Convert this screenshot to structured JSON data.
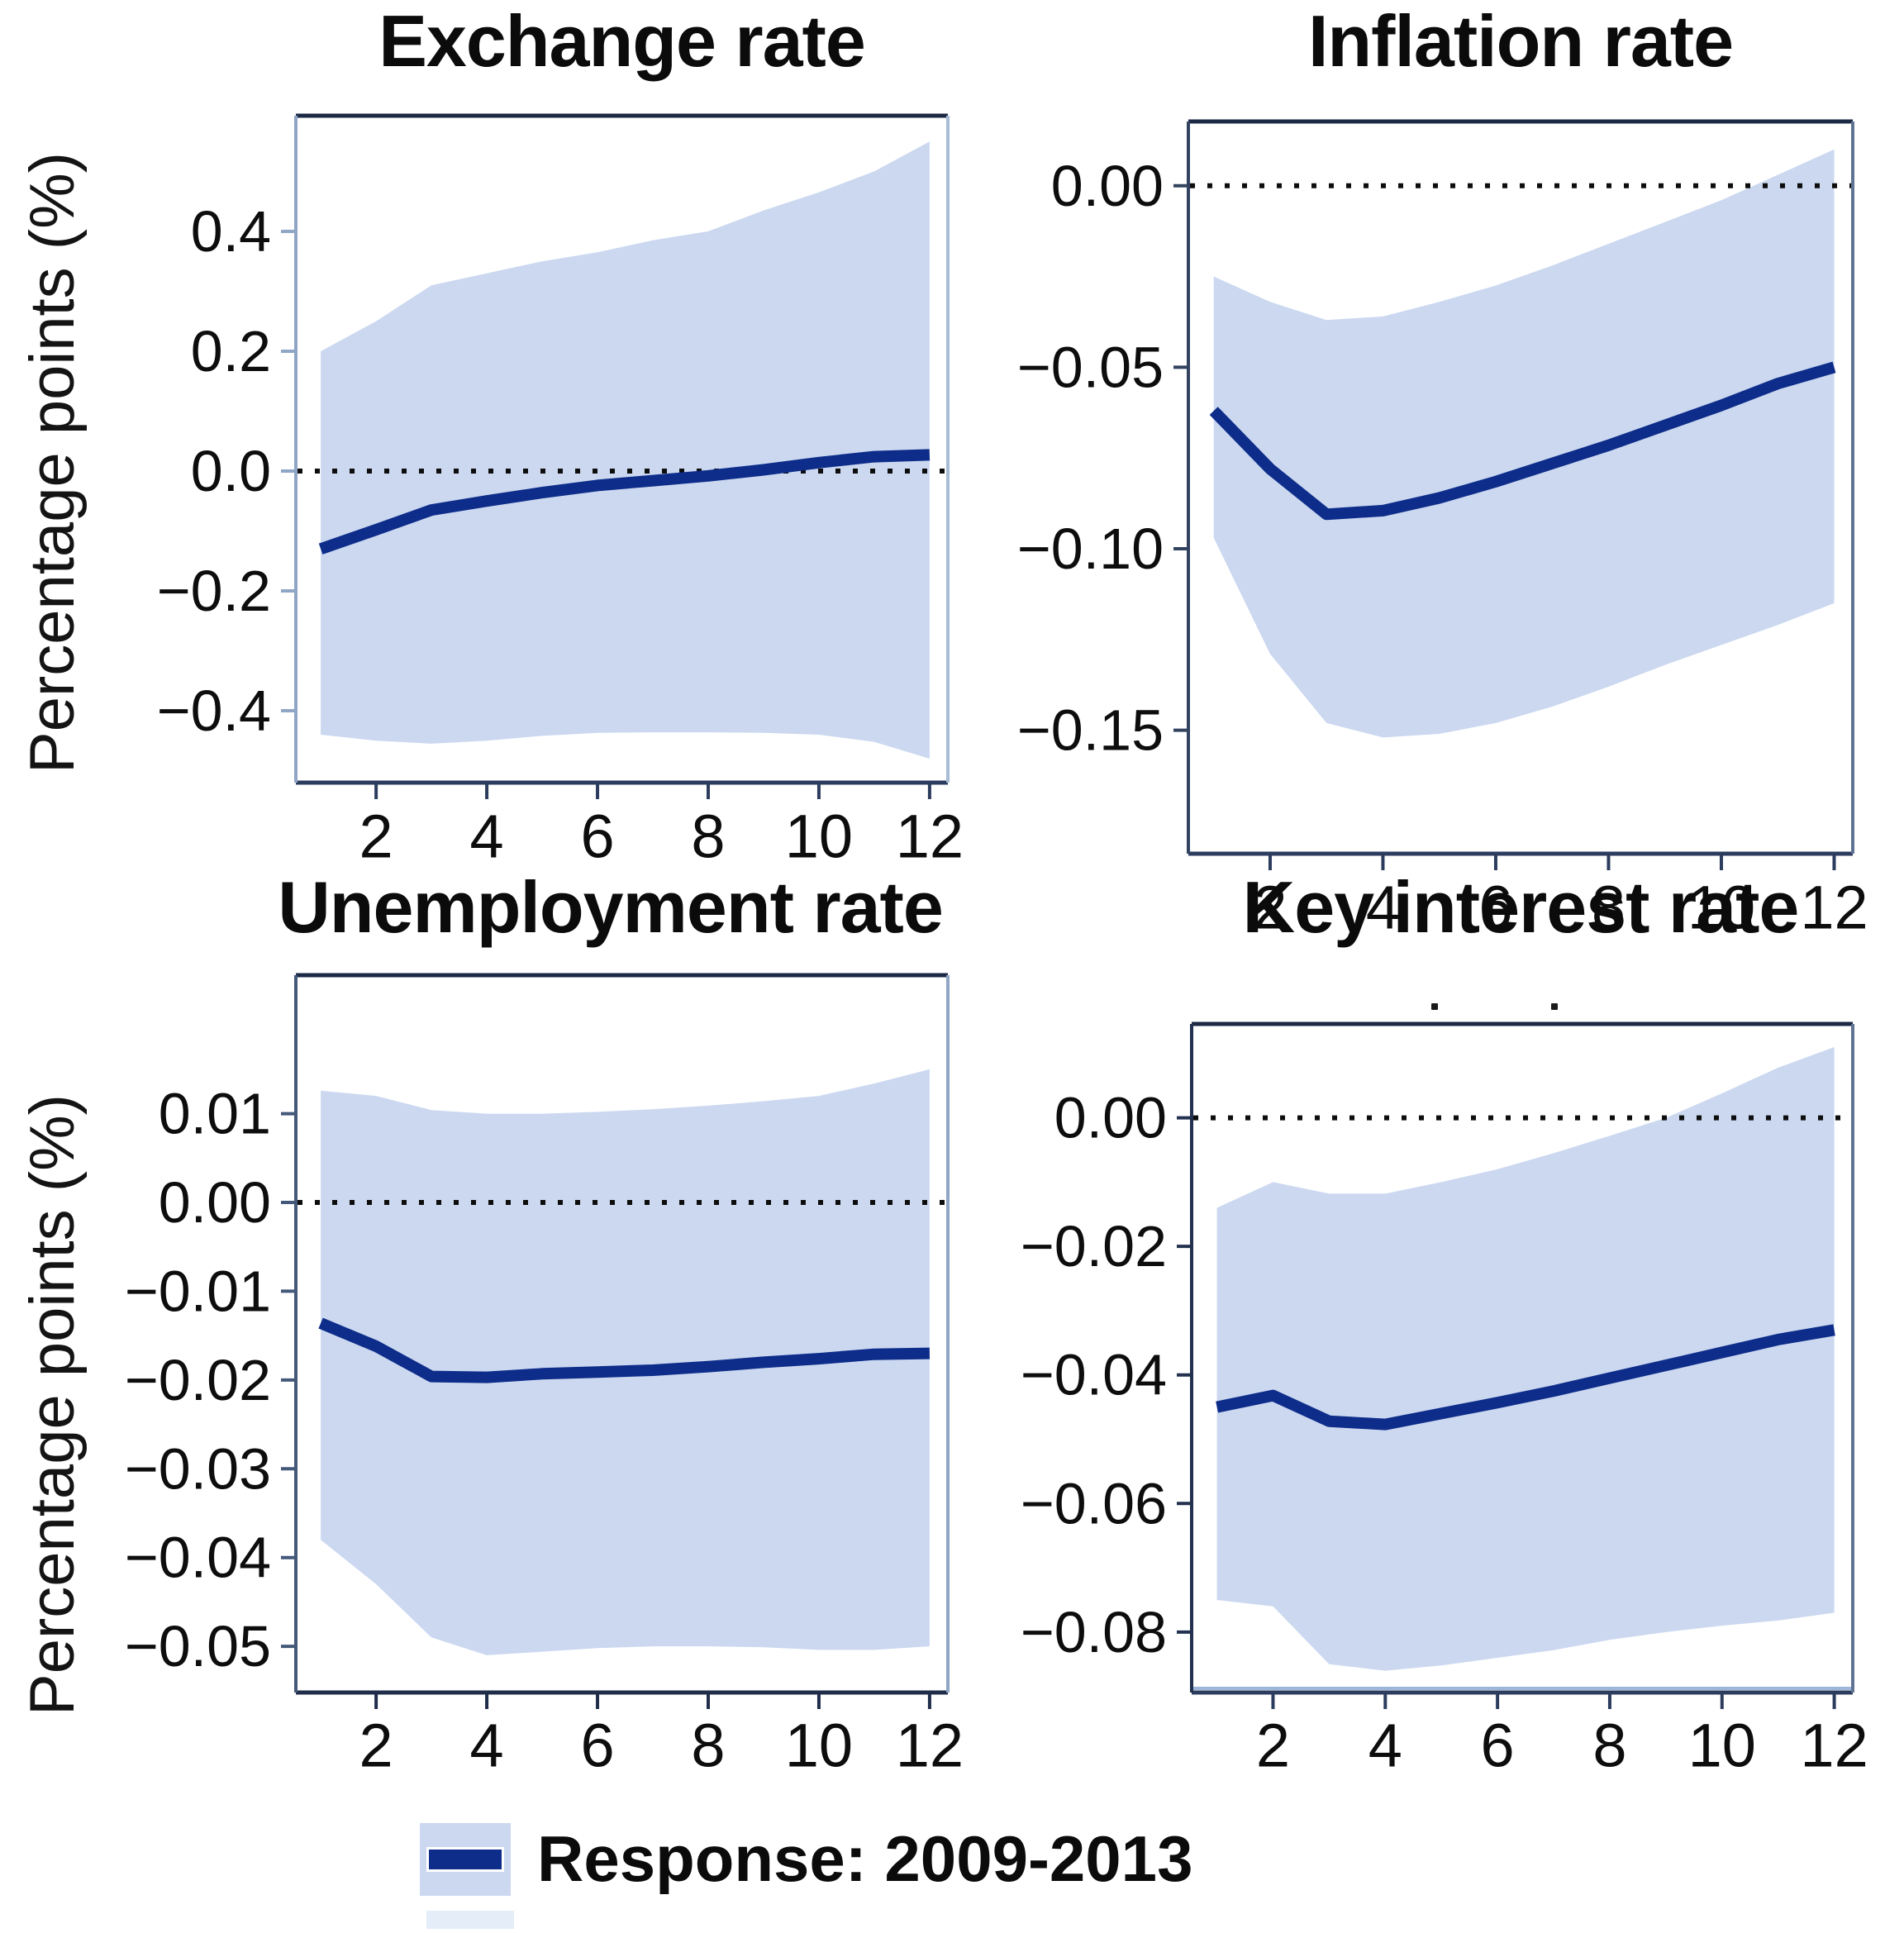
{
  "figure": {
    "ylabel": "Percentage points (%)",
    "legend": {
      "label": "Response: 2009-2013"
    },
    "colors": {
      "band": "#cbd8f0",
      "line": "#0e2d8a",
      "zero_line": "#0d0d0d",
      "title_text": "#0b0b0b",
      "tick_text": "#0d0d0d"
    }
  },
  "chart_data": [
    {
      "type": "line",
      "title": "Exchange rate",
      "x": [
        1,
        2,
        3,
        4,
        5,
        6,
        7,
        8,
        9,
        10,
        11,
        12
      ],
      "x_ticks": [
        2,
        4,
        6,
        8,
        10,
        12
      ],
      "xlim": [
        0.55,
        12.33
      ],
      "ylim": [
        -0.52,
        0.593
      ],
      "y_ticks": [
        {
          "v": 0.4,
          "label": "0.4"
        },
        {
          "v": 0.2,
          "label": "0.2"
        },
        {
          "v": 0.0,
          "label": "0.0"
        },
        {
          "v": -0.2,
          "label": "−0.2"
        },
        {
          "v": -0.4,
          "label": "−0.4"
        }
      ],
      "zero_line": true,
      "series": [
        {
          "name": "Response: 2009-2013",
          "values": [
            -0.13,
            -0.098,
            -0.065,
            -0.05,
            -0.036,
            -0.024,
            -0.016,
            -0.008,
            0.002,
            0.014,
            0.024,
            0.027
          ]
        }
      ],
      "band": {
        "upper": [
          0.2,
          0.25,
          0.31,
          0.33,
          0.35,
          0.365,
          0.385,
          0.4,
          0.435,
          0.465,
          0.5,
          0.55
        ],
        "lower": [
          -0.44,
          -0.45,
          -0.455,
          -0.45,
          -0.442,
          -0.437,
          -0.436,
          -0.436,
          -0.437,
          -0.44,
          -0.452,
          -0.48
        ]
      }
    },
    {
      "type": "line",
      "title": "Inflation rate",
      "x": [
        1,
        2,
        3,
        4,
        5,
        6,
        7,
        8,
        9,
        10,
        11,
        12
      ],
      "x_ticks": [
        2,
        4,
        6,
        8,
        10,
        12
      ],
      "xlim": [
        0.55,
        12.33
      ],
      "ylim": [
        -0.184,
        0.0177
      ],
      "y_ticks": [
        {
          "v": 0.0,
          "label": "0.00"
        },
        {
          "v": -0.05,
          "label": "−0.05"
        },
        {
          "v": -0.1,
          "label": "−0.10"
        },
        {
          "v": -0.15,
          "label": "−0.15"
        }
      ],
      "zero_line": true,
      "series": [
        {
          "name": "Response: 2009-2013",
          "values": [
            -0.062,
            -0.078,
            -0.0905,
            -0.0895,
            -0.086,
            -0.0815,
            -0.0765,
            -0.0715,
            -0.066,
            -0.0605,
            -0.0545,
            -0.05
          ]
        }
      ],
      "band": {
        "upper": [
          -0.025,
          -0.032,
          -0.037,
          -0.036,
          -0.032,
          -0.0275,
          -0.022,
          -0.016,
          -0.01,
          -0.004,
          0.003,
          0.01
        ],
        "lower": [
          -0.097,
          -0.129,
          -0.148,
          -0.152,
          -0.151,
          -0.148,
          -0.1435,
          -0.138,
          -0.132,
          -0.1265,
          -0.121,
          -0.115
        ]
      }
    },
    {
      "type": "line",
      "title": "Unemployment rate",
      "x": [
        1,
        2,
        3,
        4,
        5,
        6,
        7,
        8,
        9,
        10,
        11,
        12
      ],
      "x_ticks": [
        2,
        4,
        6,
        8,
        10,
        12
      ],
      "xlim": [
        0.55,
        12.33
      ],
      "ylim": [
        -0.0552,
        0.0256
      ],
      "y_ticks": [
        {
          "v": 0.01,
          "label": "0.01"
        },
        {
          "v": 0.0,
          "label": "0.00"
        },
        {
          "v": -0.01,
          "label": "−0.01"
        },
        {
          "v": -0.02,
          "label": "−0.02"
        },
        {
          "v": -0.03,
          "label": "−0.03"
        },
        {
          "v": -0.04,
          "label": "−0.04"
        },
        {
          "v": -0.05,
          "label": "−0.05"
        }
      ],
      "zero_line": true,
      "series": [
        {
          "name": "Response: 2009-2013",
          "values": [
            -0.0136,
            -0.0162,
            -0.0196,
            -0.0197,
            -0.0193,
            -0.0191,
            -0.0189,
            -0.0185,
            -0.018,
            -0.0176,
            -0.0171,
            -0.017
          ]
        }
      ],
      "band": {
        "upper": [
          0.0126,
          0.012,
          0.0104,
          0.01,
          0.01,
          0.0102,
          0.0105,
          0.0109,
          0.0114,
          0.012,
          0.0134,
          0.015
        ],
        "lower": [
          -0.038,
          -0.043,
          -0.049,
          -0.051,
          -0.0506,
          -0.0502,
          -0.05,
          -0.05,
          -0.0501,
          -0.0504,
          -0.0504,
          -0.05
        ]
      }
    },
    {
      "type": "line",
      "title": "Key interest rate",
      "x": [
        1,
        2,
        3,
        4,
        5,
        6,
        7,
        8,
        9,
        10,
        11,
        12
      ],
      "x_ticks": [
        2,
        4,
        6,
        8,
        10,
        12
      ],
      "xlim": [
        0.55,
        12.33
      ],
      "ylim": [
        -0.0894,
        0.0146
      ],
      "y_ticks": [
        {
          "v": 0.0,
          "label": "0.00"
        },
        {
          "v": -0.02,
          "label": "−0.02"
        },
        {
          "v": -0.04,
          "label": "−0.04"
        },
        {
          "v": -0.06,
          "label": "−0.06"
        },
        {
          "v": -0.08,
          "label": "−0.08"
        }
      ],
      "zero_line": true,
      "series": [
        {
          "name": "Response: 2009-2013",
          "values": [
            -0.045,
            -0.0432,
            -0.0472,
            -0.0477,
            -0.046,
            -0.0443,
            -0.0425,
            -0.0405,
            -0.0385,
            -0.0365,
            -0.0345,
            -0.033
          ]
        }
      ],
      "band": {
        "upper": [
          -0.014,
          -0.01,
          -0.0118,
          -0.0118,
          -0.01,
          -0.008,
          -0.0055,
          -0.0028,
          0.0,
          0.0038,
          0.0078,
          0.011
        ],
        "lower": [
          -0.075,
          -0.076,
          -0.085,
          -0.086,
          -0.0852,
          -0.084,
          -0.0828,
          -0.0812,
          -0.08,
          -0.079,
          -0.0782,
          -0.077
        ]
      }
    }
  ]
}
